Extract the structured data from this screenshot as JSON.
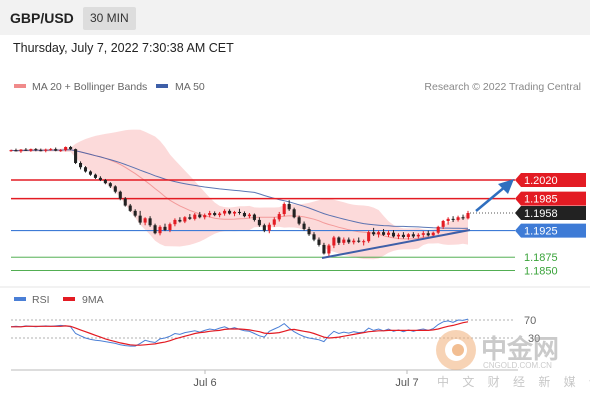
{
  "header": {
    "symbol": "GBP/USD",
    "timeframe": "30 MIN"
  },
  "timestamp": "Thursday, July 7, 2022 7:30:38 AM CET",
  "legend": {
    "ma20_label": "MA 20 + Bollinger Bands",
    "ma50_label": "MA 50",
    "ma20_color": "#f08a8a",
    "ma50_color": "#3e5fa8",
    "copyright": "Research © 2022 Trading Central"
  },
  "colors": {
    "bull_candle": "#e31b23",
    "bear_candle": "#222222",
    "bollinger_fill": "#fbd3d3",
    "resistance": "#e31b23",
    "pivot": "#3e7bd6",
    "support": "#3aa33a",
    "rsi_line": "#4a7fd6",
    "rsi_ma": "#e31b23",
    "price_tag_current": "#222222"
  },
  "chart_data": [
    {
      "type": "candlestick",
      "title": "GBP/USD",
      "timeframe": "30 MIN",
      "x_ticks": [
        "Jul 6",
        "Jul 7"
      ],
      "ylim": [
        1.1835,
        1.2115
      ],
      "series": [
        {
          "name": "MA 20 + Bollinger Bands",
          "color": "#f08a8a"
        },
        {
          "name": "MA 50",
          "color": "#3e5fa8"
        }
      ],
      "price_levels": [
        {
          "label": "1.2020",
          "value": 1.202,
          "kind": "target"
        },
        {
          "label": "1.1985",
          "value": 1.1985,
          "kind": "resistance"
        },
        {
          "label": "1.1958",
          "value": 1.1958,
          "kind": "current"
        },
        {
          "label": "1.1925",
          "value": 1.1925,
          "kind": "pivot"
        },
        {
          "label": "1.1875",
          "value": 1.1875,
          "kind": "support"
        },
        {
          "label": "1.1850",
          "value": 1.185,
          "kind": "support"
        }
      ],
      "ohlc_approx": [
        [
          1.2075,
          1.2077,
          1.2073,
          1.2076
        ],
        [
          1.2076,
          1.2079,
          1.2074,
          1.2074
        ],
        [
          1.2074,
          1.2078,
          1.2071,
          1.2077
        ],
        [
          1.2077,
          1.208,
          1.2075,
          1.2075
        ],
        [
          1.2075,
          1.2079,
          1.2073,
          1.2078
        ],
        [
          1.2078,
          1.208,
          1.2074,
          1.2076
        ],
        [
          1.2076,
          1.2079,
          1.2074,
          1.2075
        ],
        [
          1.2075,
          1.2079,
          1.2072,
          1.2077
        ],
        [
          1.2077,
          1.208,
          1.2075,
          1.2078
        ],
        [
          1.2078,
          1.2081,
          1.2074,
          1.2075
        ],
        [
          1.2075,
          1.2078,
          1.2073,
          1.2076
        ],
        [
          1.2076,
          1.2083,
          1.2074,
          1.2082
        ],
        [
          1.2082,
          1.2084,
          1.2076,
          1.2078
        ],
        [
          1.2078,
          1.2079,
          1.205,
          1.2052
        ],
        [
          1.2052,
          1.2055,
          1.204,
          1.2044
        ],
        [
          1.2044,
          1.2046,
          1.2034,
          1.2036
        ],
        [
          1.2036,
          1.2038,
          1.2028,
          1.203
        ],
        [
          1.203,
          1.2032,
          1.2022,
          1.2024
        ],
        [
          1.2024,
          1.2027,
          1.2018,
          1.202
        ],
        [
          1.202,
          1.2022,
          1.2012,
          1.2014
        ],
        [
          1.2014,
          1.2016,
          1.2005,
          1.2008
        ],
        [
          1.2008,
          1.201,
          1.1995,
          1.1998
        ],
        [
          1.1998,
          1.2,
          1.1982,
          1.1985
        ],
        [
          1.1985,
          1.1988,
          1.197,
          1.1972
        ],
        [
          1.1972,
          1.1975,
          1.196,
          1.1962
        ],
        [
          1.1962,
          1.1965,
          1.195,
          1.1953
        ],
        [
          1.1953,
          1.1962,
          1.1936,
          1.194
        ],
        [
          1.194,
          1.195,
          1.1935,
          1.1948
        ],
        [
          1.1948,
          1.1952,
          1.1932,
          1.1935
        ],
        [
          1.1935,
          1.1938,
          1.1918,
          1.192
        ],
        [
          1.192,
          1.1935,
          1.1916,
          1.1932
        ],
        [
          1.1932,
          1.1938,
          1.1924,
          1.1926
        ],
        [
          1.1926,
          1.194,
          1.1922,
          1.1937
        ],
        [
          1.1937,
          1.1948,
          1.1933,
          1.1945
        ],
        [
          1.1945,
          1.195,
          1.194,
          1.1942
        ],
        [
          1.1942,
          1.1952,
          1.1939,
          1.195
        ],
        [
          1.195,
          1.1956,
          1.1945,
          1.1947
        ],
        [
          1.1947,
          1.1958,
          1.1944,
          1.1955
        ],
        [
          1.1955,
          1.196,
          1.1948,
          1.195
        ],
        [
          1.195,
          1.1957,
          1.1946,
          1.1954
        ],
        [
          1.1954,
          1.1962,
          1.195,
          1.1958
        ],
        [
          1.1958,
          1.1961,
          1.1952,
          1.1954
        ],
        [
          1.1954,
          1.196,
          1.195,
          1.1957
        ],
        [
          1.1957,
          1.1965,
          1.1953,
          1.1962
        ],
        [
          1.1962,
          1.1965,
          1.1955,
          1.1957
        ],
        [
          1.1957,
          1.1962,
          1.1952,
          1.196
        ],
        [
          1.196,
          1.1966,
          1.1955,
          1.1958
        ],
        [
          1.1958,
          1.1961,
          1.195,
          1.1952
        ],
        [
          1.1952,
          1.1958,
          1.1948,
          1.1955
        ],
        [
          1.1955,
          1.1957,
          1.1942,
          1.1945
        ],
        [
          1.1945,
          1.195,
          1.1932,
          1.1935
        ],
        [
          1.1935,
          1.1938,
          1.1922,
          1.1925
        ],
        [
          1.1925,
          1.194,
          1.192,
          1.1936
        ],
        [
          1.1936,
          1.195,
          1.1932,
          1.1946
        ],
        [
          1.1946,
          1.196,
          1.1942,
          1.1956
        ],
        [
          1.1956,
          1.1978,
          1.1952,
          1.1975
        ],
        [
          1.1975,
          1.1982,
          1.1962,
          1.1965
        ],
        [
          1.1965,
          1.1968,
          1.1948,
          1.195
        ],
        [
          1.195,
          1.1953,
          1.1935,
          1.1938
        ],
        [
          1.1938,
          1.1942,
          1.1925,
          1.1928
        ],
        [
          1.1928,
          1.1932,
          1.1915,
          1.1918
        ],
        [
          1.1918,
          1.1922,
          1.1905,
          1.1908
        ],
        [
          1.1908,
          1.1912,
          1.1895,
          1.1898
        ],
        [
          1.1898,
          1.1902,
          1.188,
          1.1882
        ],
        [
          1.1882,
          1.19,
          1.1876,
          1.1897
        ],
        [
          1.1897,
          1.1915,
          1.1892,
          1.1912
        ],
        [
          1.1912,
          1.1914,
          1.1898,
          1.1902
        ],
        [
          1.1902,
          1.1912,
          1.1898,
          1.1908
        ],
        [
          1.1908,
          1.1912,
          1.19,
          1.1903
        ],
        [
          1.1903,
          1.191,
          1.1899,
          1.1906
        ],
        [
          1.1906,
          1.1912,
          1.1902,
          1.1904
        ],
        [
          1.1904,
          1.1908,
          1.1897,
          1.1905
        ],
        [
          1.1905,
          1.1925,
          1.1902,
          1.1922
        ],
        [
          1.1922,
          1.193,
          1.1915,
          1.1918
        ],
        [
          1.1918,
          1.1925,
          1.1912,
          1.1922
        ],
        [
          1.1922,
          1.1928,
          1.1915,
          1.1917
        ],
        [
          1.1917,
          1.1925,
          1.1913,
          1.1921
        ],
        [
          1.1921,
          1.1926,
          1.1912,
          1.1914
        ],
        [
          1.1914,
          1.192,
          1.1909,
          1.1917
        ],
        [
          1.1917,
          1.1922,
          1.191,
          1.1913
        ],
        [
          1.1913,
          1.192,
          1.1908,
          1.1918
        ],
        [
          1.1918,
          1.1922,
          1.1911,
          1.1914
        ],
        [
          1.1914,
          1.192,
          1.191,
          1.1917
        ],
        [
          1.1917,
          1.1924,
          1.1912,
          1.192
        ],
        [
          1.192,
          1.1925,
          1.1914,
          1.1916
        ],
        [
          1.1916,
          1.1923,
          1.1912,
          1.1921
        ],
        [
          1.1921,
          1.1934,
          1.1918,
          1.1932
        ],
        [
          1.1932,
          1.1945,
          1.1928,
          1.1943
        ],
        [
          1.1943,
          1.195,
          1.1936,
          1.1947
        ],
        [
          1.1947,
          1.1952,
          1.1941,
          1.1945
        ],
        [
          1.1945,
          1.1953,
          1.1942,
          1.195
        ],
        [
          1.195,
          1.1955,
          1.1945,
          1.1948
        ],
        [
          1.1948,
          1.1962,
          1.1946,
          1.1958
        ]
      ]
    },
    {
      "type": "line",
      "title": "RSI",
      "series": [
        {
          "name": "RSI",
          "color": "#4a7fd6"
        },
        {
          "name": "9MA",
          "color": "#e31b23"
        }
      ],
      "y_ticks": [
        "70",
        "30"
      ],
      "ylim": [
        0,
        100
      ],
      "rsi_approx": [
        55,
        56,
        55,
        57,
        56,
        55,
        56,
        57,
        56,
        57,
        58,
        57,
        55,
        40,
        35,
        30,
        27,
        25,
        24,
        22,
        20,
        18,
        15,
        13,
        12,
        12,
        18,
        25,
        22,
        20,
        28,
        30,
        34,
        40,
        38,
        42,
        44,
        46,
        43,
        47,
        50,
        48,
        52,
        55,
        50,
        53,
        49,
        46,
        45,
        40,
        35,
        32,
        45,
        50,
        55,
        62,
        52,
        44,
        38,
        33,
        30,
        28,
        26,
        22,
        35,
        45,
        40,
        43,
        41,
        44,
        42,
        43,
        52,
        47,
        50,
        46,
        50,
        45,
        48,
        44,
        48,
        45,
        48,
        50,
        47,
        51,
        60,
        66,
        68,
        65,
        70,
        69,
        72
      ],
      "ma9_approx": [
        55,
        55,
        55,
        56,
        56,
        56,
        56,
        56,
        56,
        56,
        56,
        57,
        56,
        52,
        48,
        44,
        40,
        36,
        32,
        28,
        25,
        22,
        19,
        17,
        15,
        14,
        14,
        15,
        16,
        17,
        19,
        21,
        24,
        28,
        31,
        34,
        37,
        40,
        42,
        43,
        45,
        46,
        47,
        49,
        50,
        50,
        50,
        49,
        48,
        46,
        44,
        41,
        40,
        41,
        42,
        45,
        48,
        49,
        47,
        45,
        43,
        40,
        36,
        32,
        30,
        31,
        32,
        34,
        36,
        38,
        40,
        42,
        44,
        45,
        46,
        46,
        47,
        47,
        47,
        47,
        47,
        47,
        47,
        47,
        47,
        48,
        50,
        53,
        56,
        58,
        61,
        64,
        66
      ]
    }
  ]
}
